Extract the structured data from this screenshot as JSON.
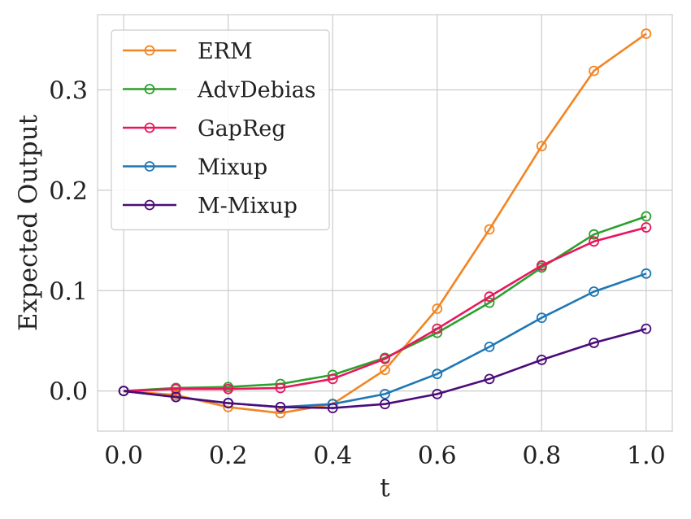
{
  "chart_data": {
    "type": "line",
    "xlabel": "t",
    "ylabel": "Expected Output",
    "xlim": [
      -0.05,
      1.05
    ],
    "ylim": [
      -0.04,
      0.375
    ],
    "xticks": [
      "0.0",
      "0.2",
      "0.4",
      "0.6",
      "0.8",
      "1.0"
    ],
    "xtick_values": [
      0.0,
      0.2,
      0.4,
      0.6,
      0.8,
      1.0
    ],
    "yticks": [
      "0.0",
      "0.1",
      "0.2",
      "0.3"
    ],
    "ytick_values": [
      0.0,
      0.1,
      0.2,
      0.3
    ],
    "grid": true,
    "legend_position": "top-left",
    "x": [
      0.0,
      0.1,
      0.2,
      0.3,
      0.4,
      0.5,
      0.6,
      0.7,
      0.8,
      0.9,
      1.0
    ],
    "series": [
      {
        "name": "ERM",
        "color": "#f28522",
        "values": [
          0.0,
          -0.004,
          -0.016,
          -0.022,
          -0.013,
          0.021,
          0.082,
          0.161,
          0.244,
          0.319,
          0.356
        ]
      },
      {
        "name": "AdvDebias",
        "color": "#2ca02c",
        "values": [
          0.0,
          0.003,
          0.004,
          0.007,
          0.016,
          0.033,
          0.058,
          0.088,
          0.123,
          0.156,
          0.174
        ]
      },
      {
        "name": "GapReg",
        "color": "#e8175d",
        "values": [
          0.0,
          0.002,
          0.002,
          0.003,
          0.012,
          0.032,
          0.062,
          0.094,
          0.125,
          0.149,
          0.163
        ]
      },
      {
        "name": "Mixup",
        "color": "#1f77b4",
        "values": [
          0.0,
          -0.006,
          -0.012,
          -0.016,
          -0.013,
          -0.003,
          0.017,
          0.044,
          0.073,
          0.099,
          0.117
        ]
      },
      {
        "name": "M-Mixup",
        "color": "#4b0c7a",
        "values": [
          0.0,
          -0.006,
          -0.012,
          -0.016,
          -0.017,
          -0.013,
          -0.003,
          0.012,
          0.031,
          0.048,
          0.062
        ]
      }
    ]
  }
}
